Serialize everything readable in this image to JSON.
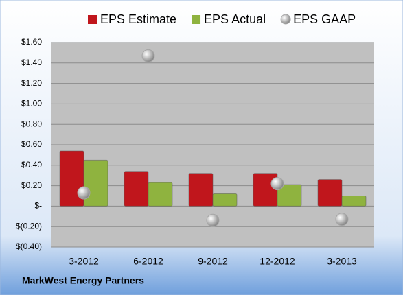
{
  "chart_data": {
    "type": "bar",
    "caption": "MarkWest Energy Partners",
    "categories": [
      "3-2012",
      "6-2012",
      "9-2012",
      "12-2012",
      "3-2013"
    ],
    "series": [
      {
        "name": "EPS Estimate",
        "type": "bar",
        "color": "#c0161c",
        "values": [
          0.54,
          0.34,
          0.32,
          0.32,
          0.26
        ]
      },
      {
        "name": "EPS Actual",
        "type": "bar",
        "color": "#8fb33f",
        "values": [
          0.45,
          0.23,
          0.12,
          0.21,
          0.1
        ]
      },
      {
        "name": "EPS GAAP",
        "type": "scatter",
        "color": "#a6a6a6",
        "values": [
          0.13,
          1.47,
          -0.14,
          0.22,
          -0.13
        ]
      }
    ],
    "ylim": [
      -0.4,
      1.6
    ],
    "yticks": [
      {
        "value": -0.4,
        "label": "$(0.40)"
      },
      {
        "value": -0.2,
        "label": "$(0.20)"
      },
      {
        "value": 0,
        "label": "$-"
      },
      {
        "value": 0.2,
        "label": "$0.20"
      },
      {
        "value": 0.4,
        "label": "$0.40"
      },
      {
        "value": 0.6,
        "label": "$0.60"
      },
      {
        "value": 0.8,
        "label": "$0.80"
      },
      {
        "value": 1.0,
        "label": "$1.00"
      },
      {
        "value": 1.2,
        "label": "$1.20"
      },
      {
        "value": 1.4,
        "label": "$1.40"
      },
      {
        "value": 1.6,
        "label": "$1.60"
      }
    ],
    "grid": true,
    "legend": "top"
  }
}
